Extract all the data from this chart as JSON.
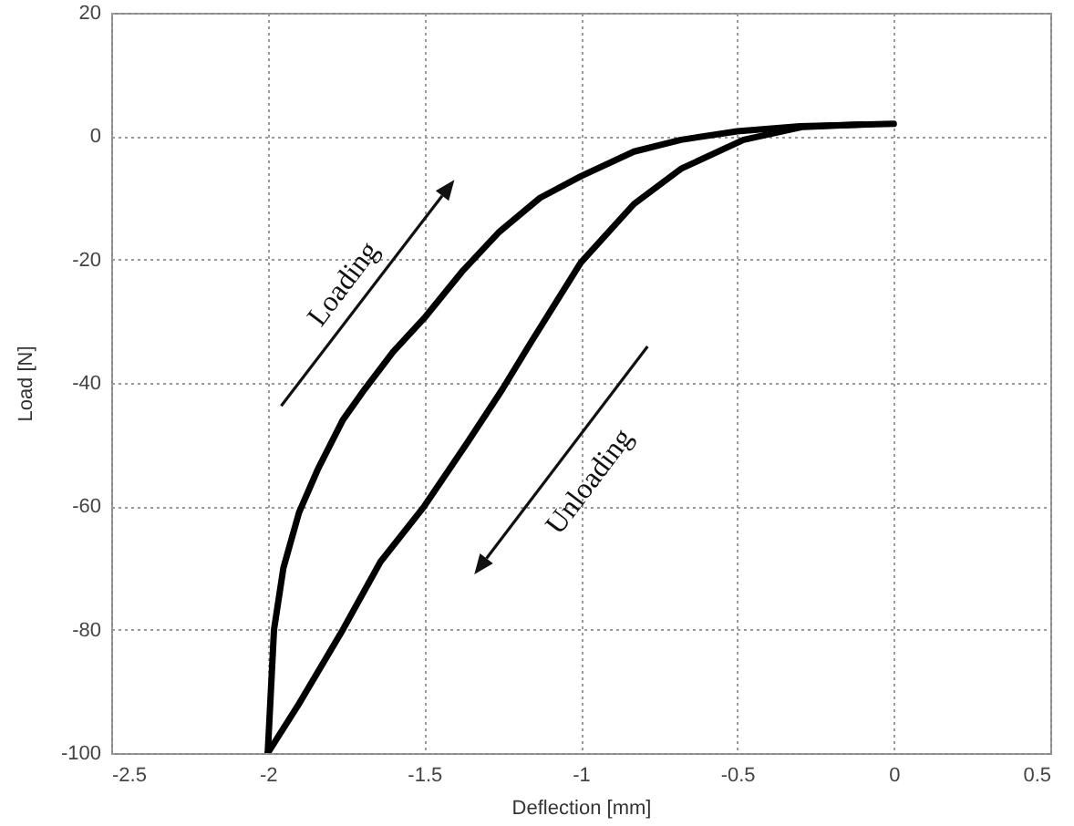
{
  "chart_data": {
    "type": "line",
    "xlabel": "Deflection [mm]",
    "ylabel": "Load [N]",
    "xlim": [
      -2.5,
      0.5
    ],
    "xticks": [
      -2.5,
      -2,
      -1.5,
      -1,
      -0.5,
      0,
      0.5
    ],
    "ylim": [
      -100,
      20
    ],
    "yticks": [
      -100,
      -80,
      -60,
      -40,
      -20,
      0,
      20
    ],
    "grid": true,
    "annotations": [
      "Loading",
      "Unloading"
    ],
    "series": [
      {
        "color": "#000000",
        "x": [
          -2,
          -1.99,
          -1.98,
          -1.95,
          -1.9,
          -1.84,
          -1.76,
          -1.69,
          -1.6,
          -1.5,
          -1.38,
          -1.26,
          -1.13,
          -1,
          -0.83,
          -0.68,
          -0.5,
          -0.3,
          0
        ],
        "values": [
          -100,
          -90,
          -80,
          -70,
          -61,
          -54,
          -46,
          -41,
          -35,
          -29.5,
          -22,
          -15.5,
          -10,
          -6.5,
          -2.5,
          -0.6,
          0.8,
          1.6,
          2
        ]
      },
      {
        "color": "#000000",
        "x": [
          -0.1,
          -0.29,
          -0.48,
          -0.68,
          -0.83,
          -1,
          -1.16,
          -1.25,
          -1.36,
          -1.5,
          -1.64,
          -1.76,
          -1.9,
          -2
        ],
        "values": [
          1.9,
          1.5,
          -0.6,
          -5.3,
          -11,
          -20.5,
          -33.5,
          -41,
          -49.5,
          -60,
          -69,
          -80,
          -92,
          -100
        ]
      }
    ]
  }
}
